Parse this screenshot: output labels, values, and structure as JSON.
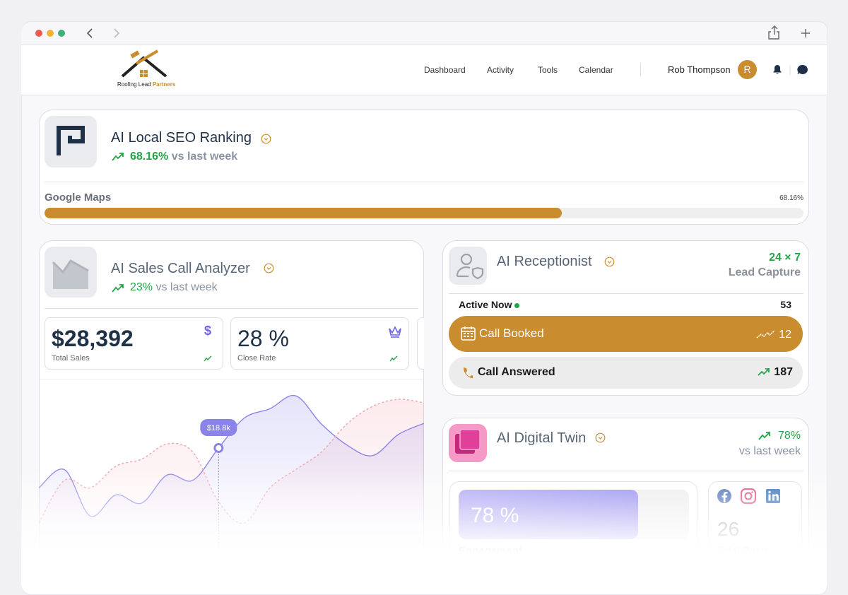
{
  "header": {
    "logo": {
      "name": "Roofing Lead",
      "accent": "Partners"
    },
    "nav": [
      "Dashboard",
      "Activity",
      "Tools",
      "Calendar"
    ],
    "user": {
      "name": "Rob Thompson",
      "initial": "R"
    }
  },
  "seo": {
    "title": "AI Local SEO Ranking",
    "change": "68.16%",
    "change_note": "vs last week",
    "source": "Google Maps",
    "progress": {
      "value": 68.16,
      "label": "68.16%"
    }
  },
  "sales": {
    "title": "AI Sales Call Analyzer",
    "change": "23%",
    "change_note": "vs last week",
    "stats": [
      {
        "value": "$28,392",
        "label": "Total Sales"
      },
      {
        "value": "28 %",
        "label": "Close Rate"
      }
    ],
    "chart": {
      "type": "line",
      "series": [
        {
          "color": "#8b84e8",
          "style": "solid",
          "values": [
            12.0,
            15.1,
            7.2,
            10.8,
            9.4,
            14.2,
            13.3,
            18.8,
            23.9,
            25.5,
            27.7,
            22.9,
            19.3,
            17.5,
            21.1,
            23.0
          ],
          "value_labels": [
            null,
            null,
            null,
            null,
            null,
            null,
            null,
            "$18.8k",
            null,
            null,
            null,
            null,
            null,
            null,
            null,
            null
          ]
        },
        {
          "color": "#f2a3ad",
          "style": "dashed",
          "values": [
            6.0,
            13.3,
            12.0,
            15.7,
            16.9,
            19.5,
            18.1,
            9.6,
            6.0,
            12.0,
            15.1,
            18.1,
            22.9,
            25.9,
            27.1,
            26.5
          ]
        }
      ]
    }
  },
  "receptionist": {
    "title": "AI Receptionist",
    "availability": "24 × 7",
    "subtitle": "Lead Capture",
    "active_label": "Active Now",
    "active_count": 53,
    "rows": [
      {
        "label": "Call Booked",
        "value": 12
      },
      {
        "label": "Call Answered",
        "value": 187
      }
    ]
  },
  "digital_twin": {
    "title": "AI Digital Twin",
    "change": "78%",
    "change_note": "vs last week",
    "engagement": {
      "value": 78,
      "label": "78 %"
    },
    "engagement_label": "Engagement",
    "posts": 26,
    "posts_label": "Total Posts"
  }
}
